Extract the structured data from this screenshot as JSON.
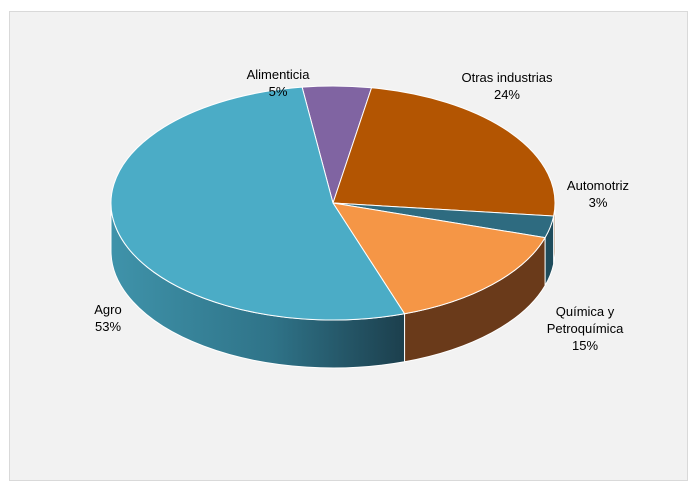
{
  "chart_data": {
    "type": "pie",
    "style": "3d",
    "title": "",
    "slices": [
      {
        "label": "Alimenticia",
        "pct_label": "5%",
        "value": 5,
        "color": "#8064a2"
      },
      {
        "label": "Otras industrias",
        "pct_label": "24%",
        "value": 24,
        "color": "#b35502"
      },
      {
        "label": "Automotriz",
        "pct_label": "3%",
        "value": 3,
        "color": "#2e6b80"
      },
      {
        "label": "Química y Petroquímica",
        "pct_label": "15%",
        "value": 15,
        "color": "#f59646"
      },
      {
        "label": "Agro",
        "pct_label": "53%",
        "value": 53,
        "color": "#4bacc6"
      }
    ],
    "legend": "none"
  },
  "labels": {
    "alimenticia": {
      "name": "Alimenticia",
      "pct": "5%"
    },
    "otras": {
      "name": "Otras industrias",
      "pct": "24%"
    },
    "automotriz": {
      "name": "Automotriz",
      "pct": "3%"
    },
    "quimica": {
      "line1": "Química y",
      "line2": "Petroquímica",
      "pct": "15%"
    },
    "agro": {
      "name": "Agro",
      "pct": "53%"
    }
  },
  "colors": {
    "background": "#f2f2f2",
    "border": "#d9d9d9"
  }
}
